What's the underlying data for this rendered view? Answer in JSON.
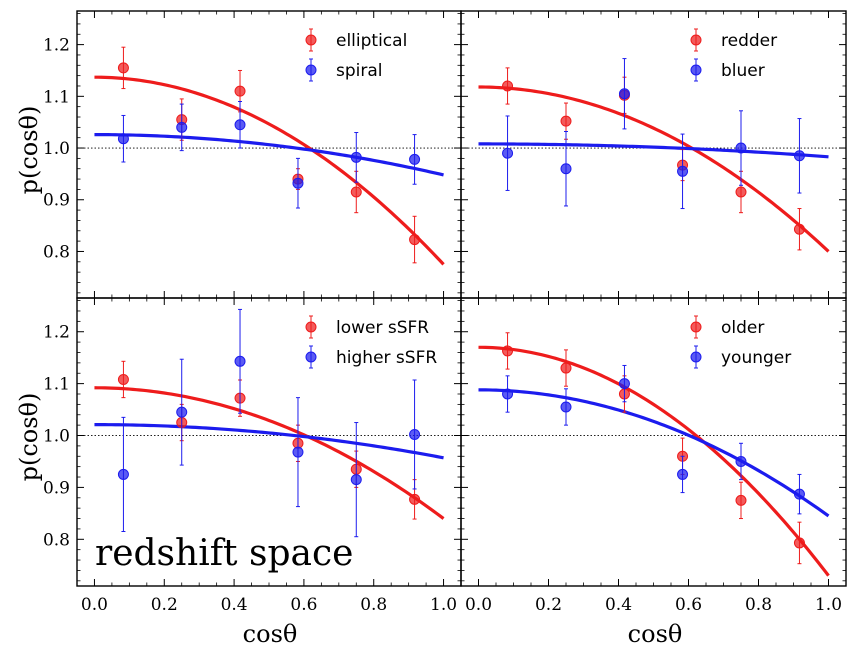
{
  "figure": {
    "ylabel": "p(cosθ)",
    "xlabel": "cosθ",
    "annotation": "redshift space",
    "x_ticks": [
      "0.0",
      "0.2",
      "0.4",
      "0.6",
      "0.8",
      "1.0"
    ],
    "y_ticks": [
      "0.8",
      "0.9",
      "1.0",
      "1.1",
      "1.2"
    ]
  },
  "chart_data": [
    {
      "type": "scatter",
      "panel": "top-left",
      "xlim": [
        -0.05,
        1.05
      ],
      "ylim": [
        0.71,
        1.265
      ],
      "legend_position": "top-right",
      "reference_line": 1.0,
      "x": [
        0.083,
        0.25,
        0.417,
        0.583,
        0.75,
        0.917
      ],
      "series": [
        {
          "name": "elliptical",
          "color": "#ee1c1c",
          "values": [
            1.155,
            1.055,
            1.11,
            0.94,
            0.915,
            0.823
          ],
          "errors": [
            0.04,
            0.04,
            0.04,
            0.02,
            0.04,
            0.045
          ],
          "fit": {
            "type": "quadratic",
            "a": 1.137,
            "b": -0.362
          }
        },
        {
          "name": "spiral",
          "color": "#1c1cee",
          "values": [
            1.018,
            1.04,
            1.045,
            0.932,
            0.982,
            0.978
          ],
          "errors": [
            0.045,
            0.045,
            0.045,
            0.048,
            0.048,
            0.048
          ],
          "fit": {
            "type": "quadratic",
            "a": 1.026,
            "b": -0.078
          }
        }
      ]
    },
    {
      "type": "scatter",
      "panel": "top-right",
      "xlim": [
        -0.05,
        1.05
      ],
      "ylim": [
        0.71,
        1.265
      ],
      "legend_position": "top-right",
      "reference_line": 1.0,
      "x": [
        0.083,
        0.25,
        0.417,
        0.583,
        0.75,
        0.917
      ],
      "series": [
        {
          "name": "redder",
          "color": "#ee1c1c",
          "values": [
            1.12,
            1.052,
            1.102,
            0.967,
            0.915,
            0.843
          ],
          "errors": [
            0.035,
            0.035,
            0.035,
            0.03,
            0.04,
            0.04
          ],
          "fit": {
            "type": "quadratic",
            "a": 1.118,
            "b": -0.318
          }
        },
        {
          "name": "bluer",
          "color": "#1c1cee",
          "values": [
            0.99,
            0.96,
            1.105,
            0.955,
            1.0,
            0.985
          ],
          "errors": [
            0.072,
            0.072,
            0.068,
            0.072,
            0.072,
            0.072
          ],
          "fit": {
            "type": "quadratic",
            "a": 1.008,
            "b": -0.025
          }
        }
      ]
    },
    {
      "type": "scatter",
      "panel": "bottom-left",
      "xlim": [
        -0.05,
        1.05
      ],
      "ylim": [
        0.71,
        1.265
      ],
      "legend_position": "top-right",
      "reference_line": 1.0,
      "x": [
        0.083,
        0.25,
        0.417,
        0.583,
        0.75,
        0.917
      ],
      "series": [
        {
          "name": "lower sSFR",
          "color": "#ee1c1c",
          "values": [
            1.108,
            1.025,
            1.072,
            0.985,
            0.935,
            0.877
          ],
          "errors": [
            0.035,
            0.035,
            0.035,
            0.035,
            0.035,
            0.038
          ],
          "fit": {
            "type": "quadratic",
            "a": 1.092,
            "b": -0.252
          }
        },
        {
          "name": "higher sSFR",
          "color": "#1c1cee",
          "values": [
            0.925,
            1.045,
            1.143,
            0.968,
            0.915,
            1.002
          ],
          "errors": [
            0.11,
            0.102,
            0.1,
            0.105,
            0.11,
            0.105
          ],
          "fit": {
            "type": "quadratic",
            "a": 1.021,
            "b": -0.064
          }
        }
      ]
    },
    {
      "type": "scatter",
      "panel": "bottom-right",
      "xlim": [
        -0.05,
        1.05
      ],
      "ylim": [
        0.71,
        1.265
      ],
      "legend_position": "top-right",
      "reference_line": 1.0,
      "x": [
        0.083,
        0.25,
        0.417,
        0.583,
        0.75,
        0.917
      ],
      "series": [
        {
          "name": "older",
          "color": "#ee1c1c",
          "values": [
            1.163,
            1.13,
            1.08,
            0.96,
            0.875,
            0.793
          ],
          "errors": [
            0.035,
            0.035,
            0.035,
            0.035,
            0.035,
            0.04
          ],
          "fit": {
            "type": "quadratic",
            "a": 1.17,
            "b": -0.44
          }
        },
        {
          "name": "younger",
          "color": "#1c1cee",
          "values": [
            1.08,
            1.055,
            1.1,
            0.925,
            0.95,
            0.887
          ],
          "errors": [
            0.035,
            0.035,
            0.035,
            0.035,
            0.035,
            0.038
          ],
          "fit": {
            "type": "quadratic",
            "a": 1.088,
            "b": -0.243
          }
        }
      ]
    }
  ]
}
